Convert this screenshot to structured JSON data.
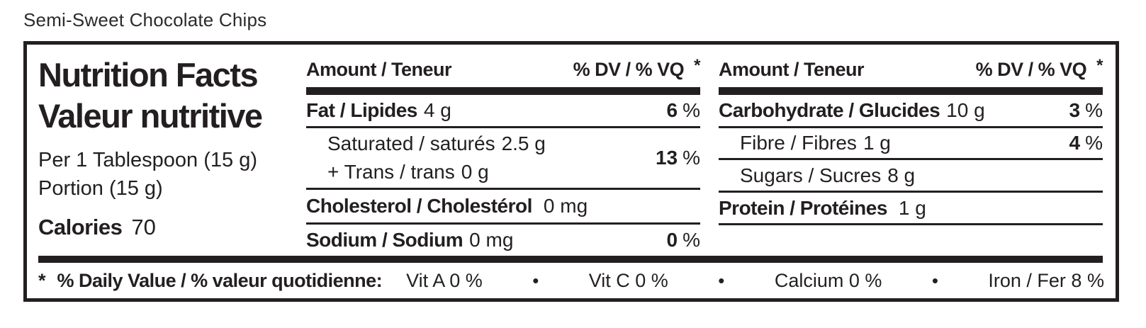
{
  "product": {
    "title": "Semi-Sweet Chocolate Chips"
  },
  "colors": {
    "ink": "#231f20",
    "bg": "#ffffff"
  },
  "panel": {
    "title_en": "Nutrition Facts",
    "title_fr": "Valeur nutritive",
    "serving_line1": "Per 1 Tablespoon (15 g)",
    "serving_line2": "Portion (15 g)",
    "calories": {
      "label": "Calories",
      "value": "70"
    },
    "header": {
      "amount": "Amount / Teneur",
      "dv": "% DV / % VQ",
      "star": "*"
    },
    "percent": "%",
    "col2": {
      "fat": {
        "label": "Fat / Lipides",
        "amount": "4 g",
        "dv": "6"
      },
      "saturated": {
        "label": "Saturated / saturés",
        "amount": "2.5 g"
      },
      "trans": {
        "label": "+ Trans / trans",
        "amount": "0 g"
      },
      "sat_trans_dv": "13",
      "cholesterol": {
        "label": "Cholesterol / Cholestérol",
        "amount": "0 mg"
      },
      "sodium": {
        "label": "Sodium / Sodium",
        "amount": "0 mg",
        "dv": "0"
      }
    },
    "col3": {
      "carbohydrate": {
        "label": "Carbohydrate / Glucides",
        "amount": "10 g",
        "dv": "3"
      },
      "fibre": {
        "label": "Fibre / Fibres",
        "amount": "1 g",
        "dv": "4"
      },
      "sugars": {
        "label": "Sugars / Sucres",
        "amount": "8 g"
      },
      "protein": {
        "label": "Protein / Protéines",
        "amount": "1 g"
      }
    },
    "footnote": {
      "star": "*",
      "label": "% Daily Value / % valeur quotidienne:",
      "bullet": "•",
      "items": [
        "Vit A 0 %",
        "Vit C 0 %",
        "Calcium 0 %",
        "Iron / Fer 8 %"
      ]
    }
  }
}
